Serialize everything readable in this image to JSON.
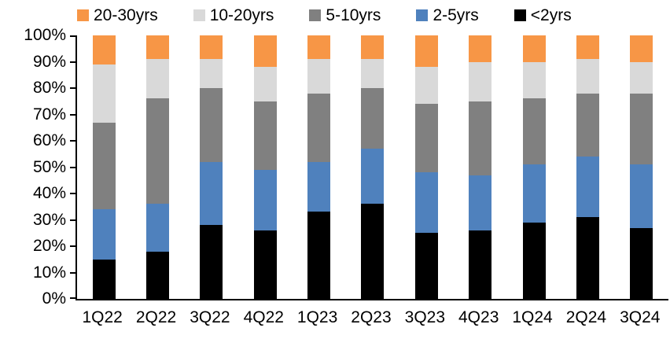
{
  "colors": {
    "orange": "#F79646",
    "light_gray": "#D9D9D9",
    "dark_gray": "#808080",
    "blue": "#4F81BD",
    "black": "#000000",
    "axis": "#000000",
    "background": "#FFFFFF"
  },
  "legend": [
    {
      "label": "20-30yrs",
      "color": "#F79646"
    },
    {
      "label": "10-20yrs",
      "color": "#D9D9D9"
    },
    {
      "label": "5-10yrs",
      "color": "#808080"
    },
    {
      "label": "2-5yrs",
      "color": "#4F81BD"
    },
    {
      "label": "<2yrs",
      "color": "#000000"
    }
  ],
  "y_axis": {
    "tick_labels": [
      "100%",
      "90%",
      "80%",
      "70%",
      "60%",
      "50%",
      "40%",
      "30%",
      "20%",
      "10%",
      "0%"
    ],
    "min": 0,
    "max": 100,
    "step": 10,
    "unit": "%"
  },
  "chart_data": {
    "type": "bar",
    "stacked": true,
    "percent_stacked": true,
    "title": "",
    "xlabel": "",
    "ylabel": "",
    "ylim": [
      0,
      100
    ],
    "grid": false,
    "legend_position": "top",
    "categories": [
      "1Q22",
      "2Q22",
      "3Q22",
      "4Q22",
      "1Q23",
      "2Q23",
      "3Q23",
      "4Q23",
      "1Q24",
      "2Q24",
      "3Q24"
    ],
    "series": [
      {
        "name": "<2yrs",
        "color": "#000000",
        "values": [
          15,
          18,
          28,
          26,
          33,
          36,
          25,
          26,
          29,
          31,
          27
        ]
      },
      {
        "name": "2-5yrs",
        "color": "#4F81BD",
        "values": [
          19,
          18,
          24,
          23,
          19,
          21,
          23,
          21,
          22,
          23,
          24
        ]
      },
      {
        "name": "5-10yrs",
        "color": "#808080",
        "values": [
          33,
          40,
          28,
          26,
          26,
          23,
          26,
          28,
          25,
          24,
          27
        ]
      },
      {
        "name": "10-20yrs",
        "color": "#D9D9D9",
        "values": [
          22,
          15,
          11,
          13,
          13,
          11,
          14,
          15,
          14,
          13,
          12
        ]
      },
      {
        "name": "20-30yrs",
        "color": "#F79646",
        "values": [
          11,
          9,
          9,
          12,
          9,
          9,
          12,
          10,
          10,
          9,
          10
        ]
      }
    ]
  }
}
